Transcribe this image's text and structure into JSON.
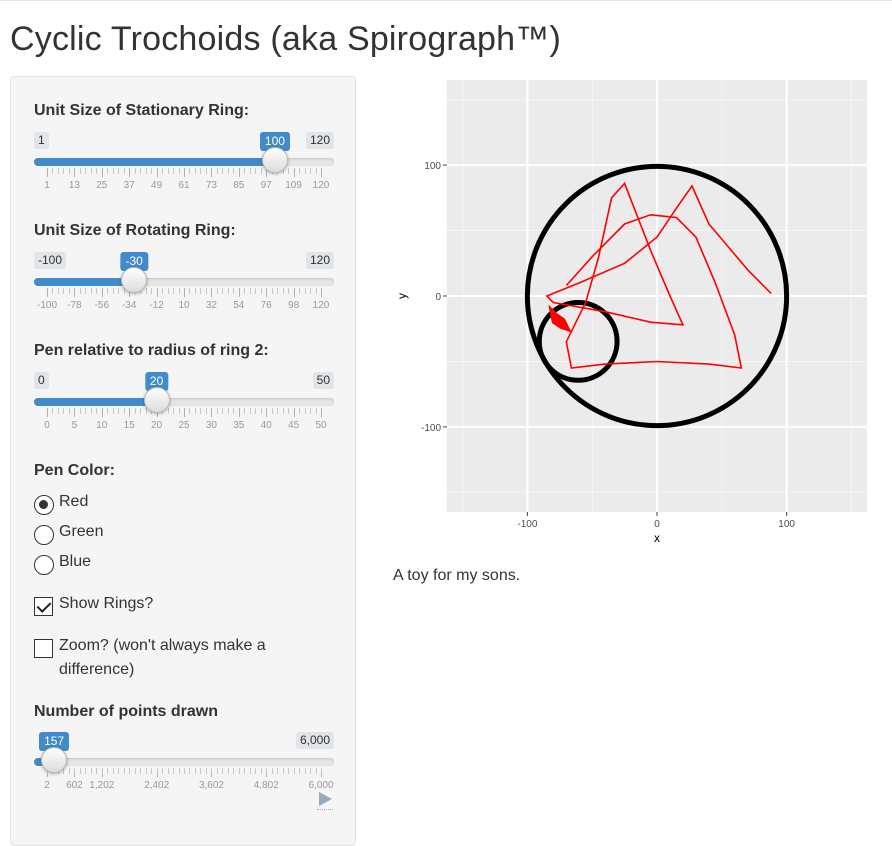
{
  "page": {
    "title": "Cyclic Trochoids (aka Spirograph™)"
  },
  "sidebar": {
    "stationary_ring": {
      "label": "Unit Size of Stationary Ring:",
      "min_label": "1",
      "max_label": "120",
      "value_label": "100",
      "min": 1,
      "max": 120,
      "value": 100,
      "tick_labels": [
        "1",
        "13",
        "25",
        "37",
        "49",
        "61",
        "73",
        "85",
        "97",
        "109",
        "120"
      ]
    },
    "rotating_ring": {
      "label": "Unit Size of Rotating Ring:",
      "min_label": "-100",
      "max_label": "120",
      "value_label": "-30",
      "min": -100,
      "max": 120,
      "value": -30,
      "tick_labels": [
        "-100",
        "-78",
        "-56",
        "-34",
        "-12",
        "10",
        "32",
        "54",
        "76",
        "98",
        "120"
      ]
    },
    "pen_radius": {
      "label": "Pen relative to radius of ring 2:",
      "min_label": "0",
      "max_label": "50",
      "value_label": "20",
      "min": 0,
      "max": 50,
      "value": 20,
      "tick_labels": [
        "0",
        "5",
        "10",
        "15",
        "20",
        "25",
        "30",
        "35",
        "40",
        "45",
        "50"
      ]
    },
    "pen_color": {
      "label": "Pen Color:",
      "options": [
        {
          "label": "Red",
          "selected": true
        },
        {
          "label": "Green",
          "selected": false
        },
        {
          "label": "Blue",
          "selected": false
        }
      ]
    },
    "show_rings": {
      "label": "Show Rings?",
      "checked": true
    },
    "zoom": {
      "label_line1": "Zoom? (won't always make a",
      "label_line2": "difference)",
      "checked": false
    },
    "points_drawn": {
      "label": "Number of points drawn",
      "min_label": "2",
      "max_label": "6,000",
      "value_label": "157",
      "min": 2,
      "max": 6000,
      "value": 157,
      "tick_labels": [
        "2",
        "602",
        "1,202",
        "2,402",
        "3,602",
        "4,802",
        "6,000"
      ],
      "tick_values": [
        2,
        602,
        1202,
        2402,
        3602,
        4802,
        6000
      ],
      "play_icon": "play-icon"
    }
  },
  "plot": {
    "xlabel": "x",
    "ylabel": "y",
    "x_ticks": [
      "-100",
      "0",
      "100"
    ],
    "y_ticks": [
      "100",
      "0",
      "-100"
    ],
    "xlim": [
      -162,
      162
    ],
    "ylim": [
      -165,
      165
    ],
    "stationary_ring_radius": 100,
    "rotating_ring_radius": 30,
    "pen_offset": 20,
    "pen_color": "#ff0000",
    "panel_bg": "#ebebeb"
  },
  "caption": "A toy for my sons."
}
